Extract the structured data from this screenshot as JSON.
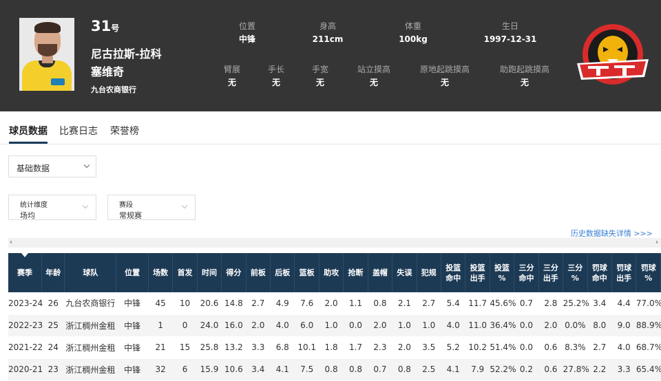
{
  "player": {
    "number": "31",
    "number_suffix": "号",
    "name_line1": "尼古拉斯-拉科",
    "name_line2": "塞维奇",
    "team": "九台农商银行"
  },
  "attributes": [
    {
      "label": "位置",
      "value": "中锋"
    },
    {
      "label": "身高",
      "value": "211cm"
    },
    {
      "label": "体重",
      "value": "100kg"
    },
    {
      "label": "生日",
      "value": "1997-12-31"
    },
    {
      "label": "臂展",
      "value": "无"
    },
    {
      "label": "手长",
      "value": "无"
    },
    {
      "label": "手宽",
      "value": "无"
    },
    {
      "label": "站立摸高",
      "value": "无"
    },
    {
      "label": "原地起跳摸高",
      "value": "无"
    },
    {
      "label": "助跑起跳摸高",
      "value": "无"
    }
  ],
  "logo": {
    "icon": "jilin-tigers-logo-icon",
    "accent": "#d92b2b",
    "gold": "#f2b20c"
  },
  "tabs": [
    {
      "label": "球员数据"
    },
    {
      "label": "比赛日志"
    },
    {
      "label": "荣誉榜"
    }
  ],
  "filters": {
    "data_type": "基础数据",
    "dimension_label": "统计维度",
    "dimension_value": "场均",
    "stage_label": "赛段",
    "stage_value": "常规赛"
  },
  "history_link": "历史数据缺失详情 >>>",
  "scroll": {
    "left": "‹",
    "right": "›"
  },
  "table": {
    "headers": [
      "赛季",
      "年龄",
      "球队",
      "位置",
      "场数",
      "首发",
      "时间",
      "得分",
      "前板",
      "后板",
      "篮板",
      "助攻",
      "抢断",
      "盖帽",
      "失误",
      "犯规",
      "投篮\n命中",
      "投篮\n出手",
      "投篮\n%",
      "三分\n命中",
      "三分\n出手",
      "三分\n%",
      "罚球\n命中",
      "罚球\n出手",
      "罚球\n%"
    ],
    "rows": [
      [
        "2023-24",
        "26",
        "九台农商银行",
        "中锋",
        "45",
        "10",
        "20.6",
        "14.8",
        "2.7",
        "4.9",
        "7.6",
        "2.0",
        "1.1",
        "0.8",
        "2.1",
        "2.7",
        "5.4",
        "11.7",
        "45.6%",
        "0.7",
        "2.8",
        "25.2%",
        "3.4",
        "4.4",
        "77.0%"
      ],
      [
        "2022-23",
        "25",
        "浙江稠州金租",
        "中锋",
        "1",
        "0",
        "24.0",
        "16.0",
        "2.0",
        "4.0",
        "6.0",
        "1.0",
        "0.0",
        "2.0",
        "1.0",
        "1.0",
        "4.0",
        "11.0",
        "36.4%",
        "0.0",
        "2.0",
        "0.0%",
        "8.0",
        "9.0",
        "88.9%"
      ],
      [
        "2021-22",
        "24",
        "浙江稠州金租",
        "中锋",
        "21",
        "15",
        "25.8",
        "13.2",
        "3.3",
        "6.8",
        "10.1",
        "1.8",
        "1.7",
        "2.3",
        "2.0",
        "3.5",
        "5.2",
        "10.2",
        "51.4%",
        "0.0",
        "0.6",
        "8.3%",
        "2.7",
        "4.0",
        "68.7%"
      ],
      [
        "2020-21",
        "23",
        "浙江稠州金租",
        "中锋",
        "32",
        "6",
        "15.9",
        "10.6",
        "3.4",
        "4.1",
        "7.5",
        "0.8",
        "0.8",
        "0.7",
        "0.8",
        "2.5",
        "4.1",
        "7.9",
        "52.2%",
        "0.2",
        "0.6",
        "27.8%",
        "2.2",
        "3.3",
        "65.4%"
      ]
    ]
  }
}
